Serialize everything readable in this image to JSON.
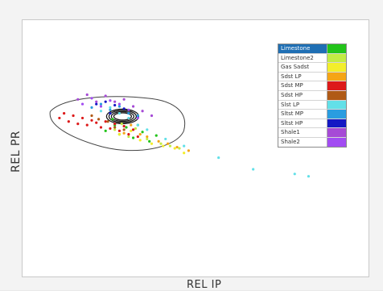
{
  "chart_data": {
    "type": "scatter",
    "title": "",
    "xlabel": "REL IP",
    "ylabel": "REL PR",
    "grid": false,
    "legend_position": "top-right",
    "legend_selected": "Limestone",
    "series": [
      {
        "name": "Limestone",
        "color": "#22c41a",
        "points": [
          [
            0.06,
            0.25
          ],
          [
            0.09,
            0.35
          ],
          [
            0.1,
            0.3
          ],
          [
            0.12,
            0.22
          ],
          [
            0.15,
            0.28
          ],
          [
            0.18,
            0.19
          ],
          [
            0.2,
            0.3
          ],
          [
            0.22,
            0.24
          ],
          [
            0.25,
            0.16
          ],
          [
            0.28,
            0.21
          ]
        ]
      },
      {
        "name": "Limestone2",
        "color": "#c2ec44",
        "points": [
          [
            0.1,
            0.26
          ],
          [
            0.13,
            0.31
          ],
          [
            0.16,
            0.2
          ],
          [
            0.19,
            0.27
          ],
          [
            0.24,
            0.18
          ],
          [
            0.3,
            0.14
          ],
          [
            0.34,
            0.12
          ],
          [
            0.38,
            0.1
          ]
        ]
      },
      {
        "name": "Gas Sadst",
        "color": "#f3ee2c",
        "points": [
          [
            0.12,
            0.22
          ],
          [
            0.17,
            0.25
          ],
          [
            0.21,
            0.17
          ],
          [
            0.26,
            0.14
          ],
          [
            0.31,
            0.12
          ],
          [
            0.36,
            0.1
          ],
          [
            0.4,
            0.06
          ]
        ]
      },
      {
        "name": "Sdst LP",
        "color": "#f5a516",
        "points": [
          [
            0.14,
            0.23
          ],
          [
            0.17,
            0.3
          ],
          [
            0.21,
            0.22
          ],
          [
            0.24,
            0.2
          ],
          [
            0.29,
            0.16
          ],
          [
            0.33,
            0.14
          ],
          [
            0.37,
            0.11
          ],
          [
            0.42,
            0.08
          ]
        ]
      },
      {
        "name": "Sdst MP",
        "color": "#dd1a1a",
        "points": [
          [
            -0.14,
            0.36
          ],
          [
            -0.12,
            0.4
          ],
          [
            -0.1,
            0.33
          ],
          [
            -0.08,
            0.38
          ],
          [
            -0.06,
            0.31
          ],
          [
            -0.04,
            0.36
          ],
          [
            -0.02,
            0.3
          ],
          [
            0.0,
            0.34
          ],
          [
            0.02,
            0.32
          ],
          [
            0.04,
            0.28
          ],
          [
            0.06,
            0.33
          ],
          [
            0.08,
            0.27
          ],
          [
            0.1,
            0.31
          ],
          [
            0.12,
            0.25
          ],
          [
            0.14,
            0.29
          ],
          [
            0.16,
            0.22
          ],
          [
            0.18,
            0.26
          ],
          [
            0.2,
            0.2
          ]
        ]
      },
      {
        "name": "Sdst HP",
        "color": "#b05a16",
        "points": [
          [
            0.0,
            0.38
          ],
          [
            0.03,
            0.35
          ],
          [
            0.07,
            0.33
          ],
          [
            0.1,
            0.28
          ],
          [
            0.14,
            0.26
          ]
        ]
      },
      {
        "name": "Slst LP",
        "color": "#62e0e8",
        "points": [
          [
            0.04,
            0.42
          ],
          [
            0.08,
            0.45
          ],
          [
            0.12,
            0.4
          ],
          [
            0.16,
            0.36
          ],
          [
            0.2,
            0.3
          ],
          [
            0.24,
            0.26
          ],
          [
            0.32,
            0.18
          ],
          [
            0.4,
            0.12
          ],
          [
            0.55,
            0.02
          ],
          [
            0.7,
            -0.08
          ],
          [
            0.88,
            -0.12
          ],
          [
            0.94,
            -0.14
          ]
        ]
      },
      {
        "name": "Sltst MP",
        "color": "#2a9de0",
        "points": [
          [
            0.0,
            0.45
          ],
          [
            0.04,
            0.48
          ],
          [
            0.08,
            0.43
          ],
          [
            0.12,
            0.46
          ],
          [
            0.16,
            0.4
          ],
          [
            0.2,
            0.38
          ]
        ]
      },
      {
        "name": "Sltst HP",
        "color": "#1418c4",
        "points": [
          [
            0.02,
            0.48
          ],
          [
            0.06,
            0.5
          ],
          [
            0.1,
            0.47
          ],
          [
            0.14,
            0.44
          ],
          [
            0.08,
            0.4
          ]
        ]
      },
      {
        "name": "Shale1",
        "color": "#a64ad6",
        "points": [
          [
            -0.06,
            0.52
          ],
          [
            -0.02,
            0.56
          ],
          [
            0.02,
            0.5
          ],
          [
            0.06,
            0.55
          ],
          [
            0.1,
            0.5
          ],
          [
            0.14,
            0.52
          ],
          [
            0.18,
            0.46
          ],
          [
            0.22,
            0.42
          ],
          [
            0.26,
            0.38
          ]
        ]
      },
      {
        "name": "Shale2",
        "color": "#a24cf2",
        "points": [
          [
            -0.04,
            0.48
          ],
          [
            0.0,
            0.53
          ],
          [
            0.04,
            0.46
          ],
          [
            0.08,
            0.51
          ],
          [
            0.12,
            0.48
          ],
          [
            0.16,
            0.43
          ],
          [
            0.2,
            0.36
          ]
        ]
      }
    ],
    "xlim": [
      -0.3,
      1.2
    ],
    "ylim": [
      -1.0,
      1.2
    ]
  }
}
